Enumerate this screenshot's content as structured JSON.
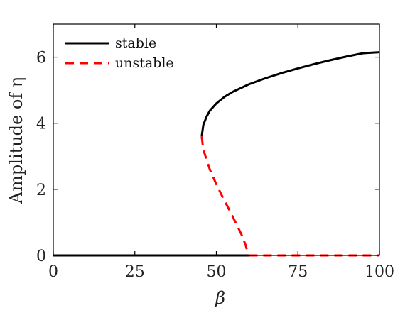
{
  "chart_data": {
    "type": "line",
    "xlabel": "β",
    "ylabel": "Amplitude of η",
    "xlim": [
      0,
      100
    ],
    "ylim": [
      0,
      7
    ],
    "xticks": [
      0,
      25,
      50,
      75,
      100
    ],
    "yticks": [
      0,
      2,
      4,
      6
    ],
    "legend_position": "top-left",
    "grid": false,
    "series": [
      {
        "name": "stable",
        "color": "#000000",
        "style": "solid",
        "segments": [
          {
            "x": [
              0,
              60
            ],
            "y": [
              0,
              0
            ]
          },
          {
            "x": [
              45.5,
              46,
              47,
              48,
              50,
              52.5,
              55,
              60,
              65,
              70,
              75,
              80,
              85,
              90,
              95,
              100
            ],
            "y": [
              3.6,
              3.95,
              4.2,
              4.38,
              4.6,
              4.8,
              4.95,
              5.18,
              5.36,
              5.52,
              5.66,
              5.79,
              5.91,
              6.02,
              6.12,
              6.15
            ]
          }
        ]
      },
      {
        "name": "unstable",
        "color": "#ff0000",
        "style": "dashed",
        "segments": [
          {
            "x": [
              45.5,
              46,
              48,
              50,
              52,
              54,
              56,
              58,
              59,
              59.5,
              60
            ],
            "y": [
              3.6,
              3.2,
              2.6,
              2.15,
              1.75,
              1.37,
              0.98,
              0.57,
              0.3,
              0.12,
              0.0
            ]
          },
          {
            "x": [
              60,
              100
            ],
            "y": [
              0,
              0
            ]
          }
        ]
      }
    ]
  }
}
